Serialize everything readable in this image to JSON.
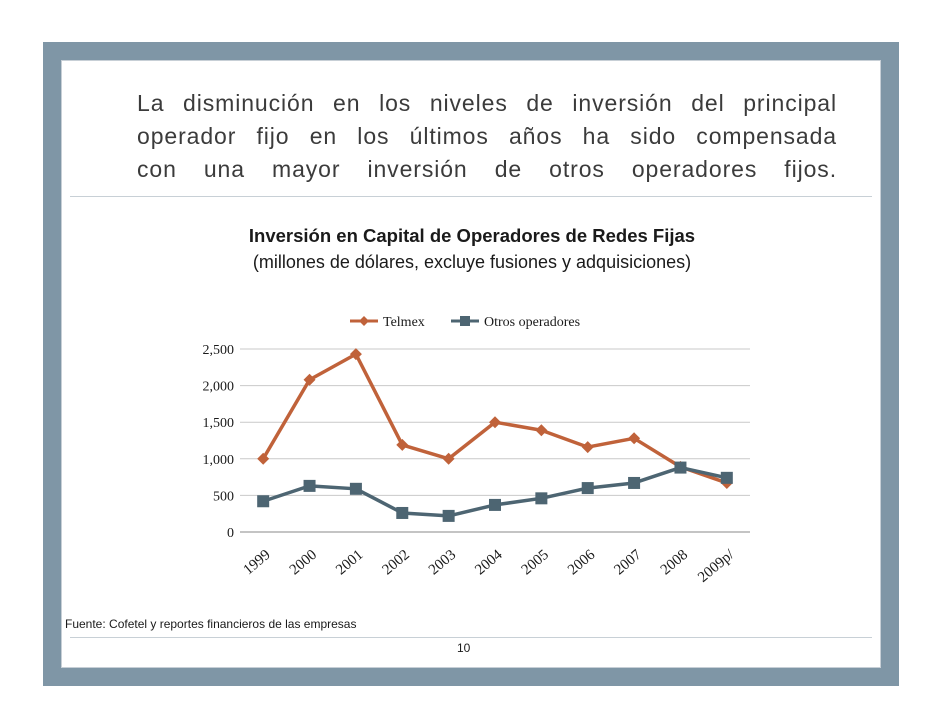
{
  "header": {
    "lines": [
      "La disminución en los niveles de inversión del principal",
      "operador fijo en los últimos años ha sido compensada",
      "con  una mayor inversión de otros operadores fijos."
    ]
  },
  "chart_data": {
    "type": "line",
    "title": "Inversión en Capital de Operadores de Redes Fijas",
    "subtitle": "(millones de dólares, excluye fusiones y adquisiciones)",
    "categories": [
      "1999",
      "2000",
      "2001",
      "2002",
      "2003",
      "2004",
      "2005",
      "2006",
      "2007",
      "2008",
      "2009p/"
    ],
    "series": [
      {
        "name": "Telmex",
        "color": "#c0623a",
        "marker": "diamond",
        "values": [
          1000,
          2080,
          2430,
          1190,
          1000,
          1500,
          1390,
          1160,
          1280,
          890,
          670
        ]
      },
      {
        "name": "Otros operadores",
        "color": "#4d6572",
        "marker": "square",
        "values": [
          420,
          630,
          590,
          260,
          220,
          370,
          460,
          600,
          670,
          880,
          740
        ]
      }
    ],
    "yticks": [
      "0",
      "500",
      "1,000",
      "1,500",
      "2,000",
      "2,500"
    ],
    "ylim": [
      0,
      2500
    ],
    "grid": true,
    "legend_position": "top"
  },
  "footer": {
    "source": "Fuente: Cofetel y reportes financieros de las empresas",
    "page": "10"
  }
}
